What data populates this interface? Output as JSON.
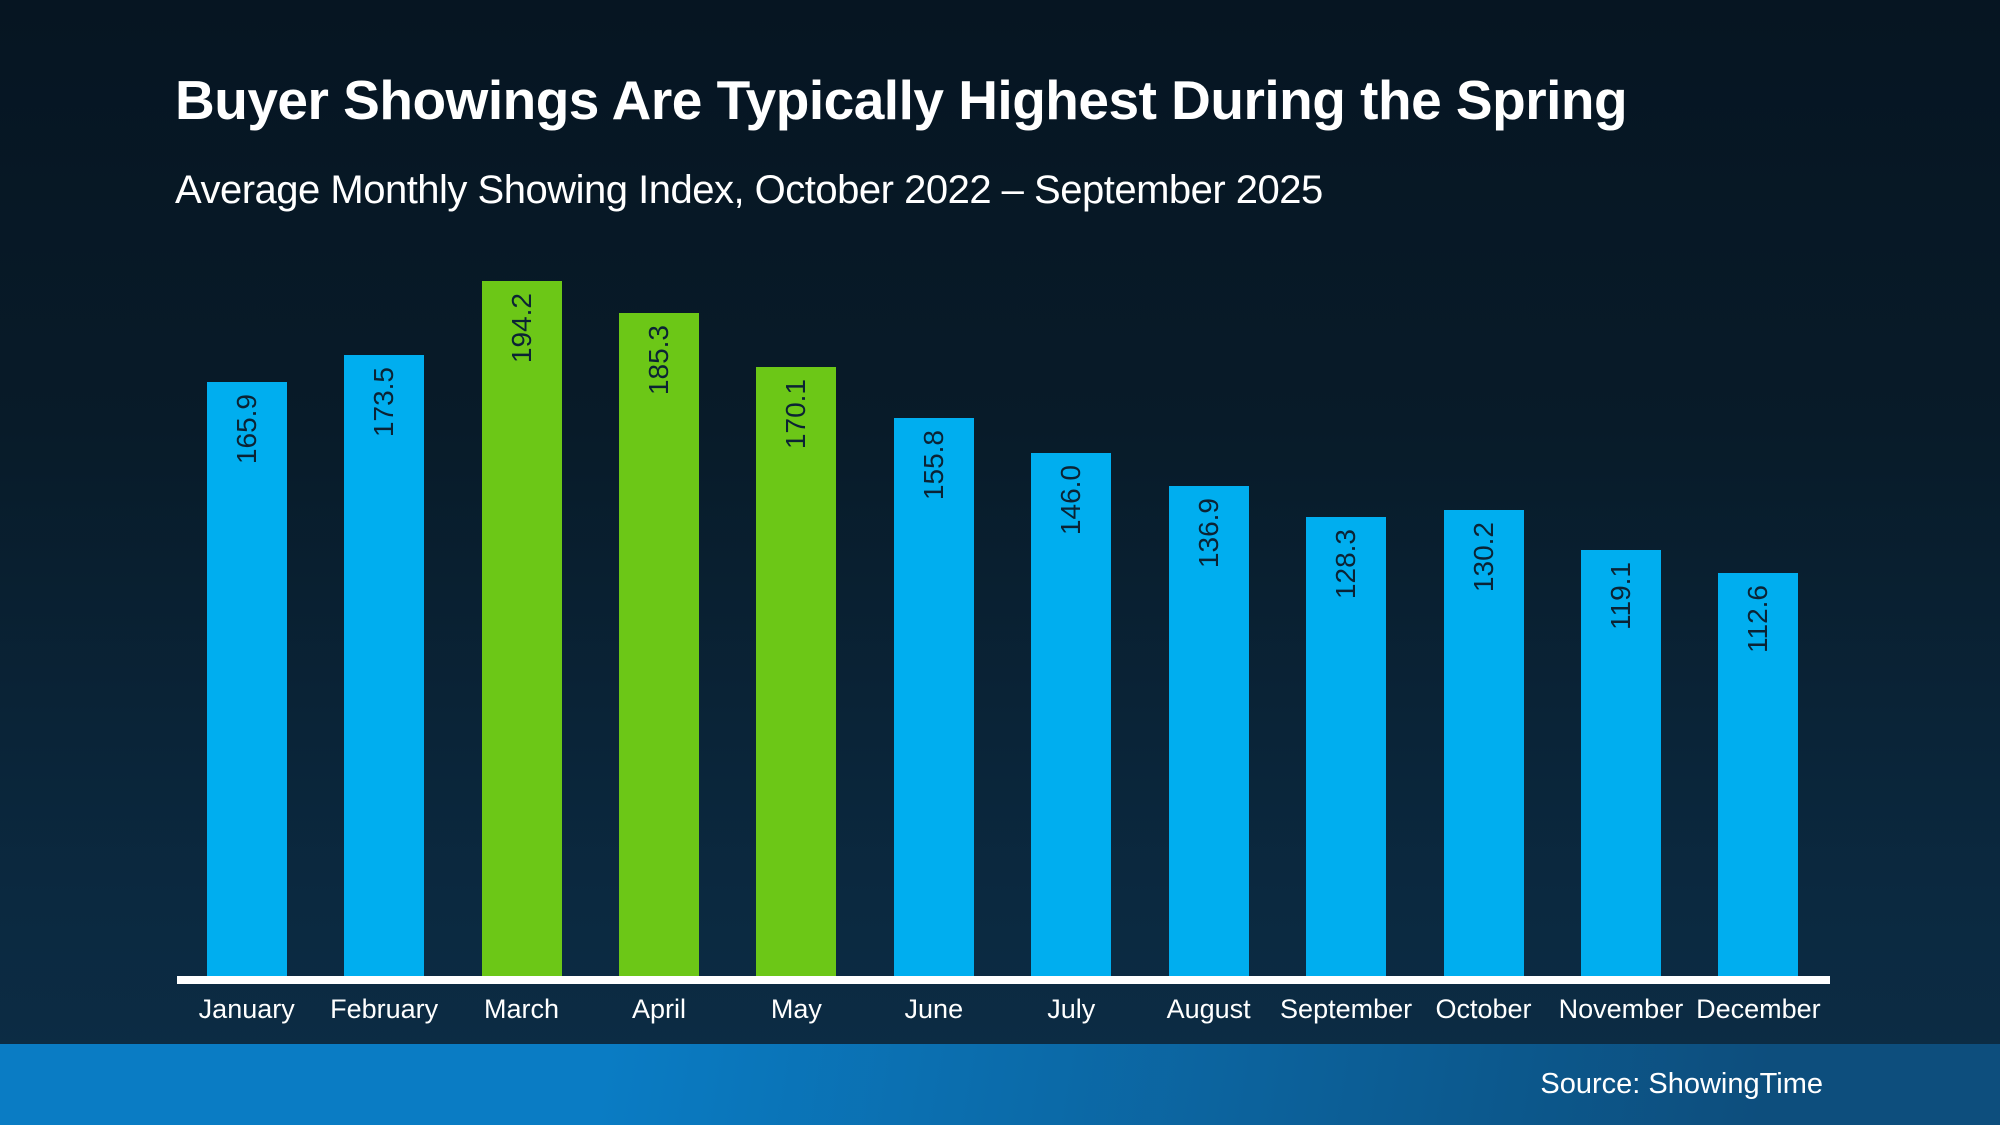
{
  "header": {
    "title": "Buyer Showings Are Typically Highest During the Spring",
    "subtitle": "Average Monthly Showing Index, October 2022 – September 2025"
  },
  "footer": {
    "source": "Source: ShowingTime"
  },
  "colors": {
    "background_top": "#061522",
    "background_bottom": "#0c2d46",
    "text": "#ffffff",
    "bar_blue": "#00aeef",
    "bar_green": "#6cc717",
    "value_label": "#0b2334",
    "axis_line": "#ffffff",
    "footer_gradient_left": "#0a7cc4",
    "footer_gradient_right": "#0d4e7d"
  },
  "chart_data": {
    "type": "bar",
    "title": "Buyer Showings Are Typically Highest During the Spring",
    "subtitle": "Average Monthly Showing Index, October 2022 – September 2025",
    "categories": [
      "January",
      "February",
      "March",
      "April",
      "May",
      "June",
      "July",
      "August",
      "September",
      "October",
      "November",
      "December"
    ],
    "values": [
      165.9,
      173.5,
      194.2,
      185.3,
      170.1,
      155.8,
      146.0,
      136.9,
      128.3,
      130.2,
      119.1,
      112.6
    ],
    "bar_colors": [
      "blue",
      "blue",
      "green",
      "green",
      "green",
      "blue",
      "blue",
      "blue",
      "blue",
      "blue",
      "blue",
      "blue"
    ],
    "highlighted_categories": [
      "March",
      "April",
      "May"
    ],
    "value_labels": [
      "165.9",
      "173.5",
      "194.2",
      "185.3",
      "170.1",
      "155.8",
      "146.0",
      "136.9",
      "128.3",
      "130.2",
      "119.1",
      "112.6"
    ],
    "value_label_style": "rotated 90° counterclockwise, inside bar near top, dark navy text",
    "xlabel": "",
    "ylabel": "",
    "ylim": [
      0,
      200
    ],
    "grid": false,
    "legend": false,
    "y_axis_shown": false,
    "baseline": "solid white x-axis line"
  }
}
